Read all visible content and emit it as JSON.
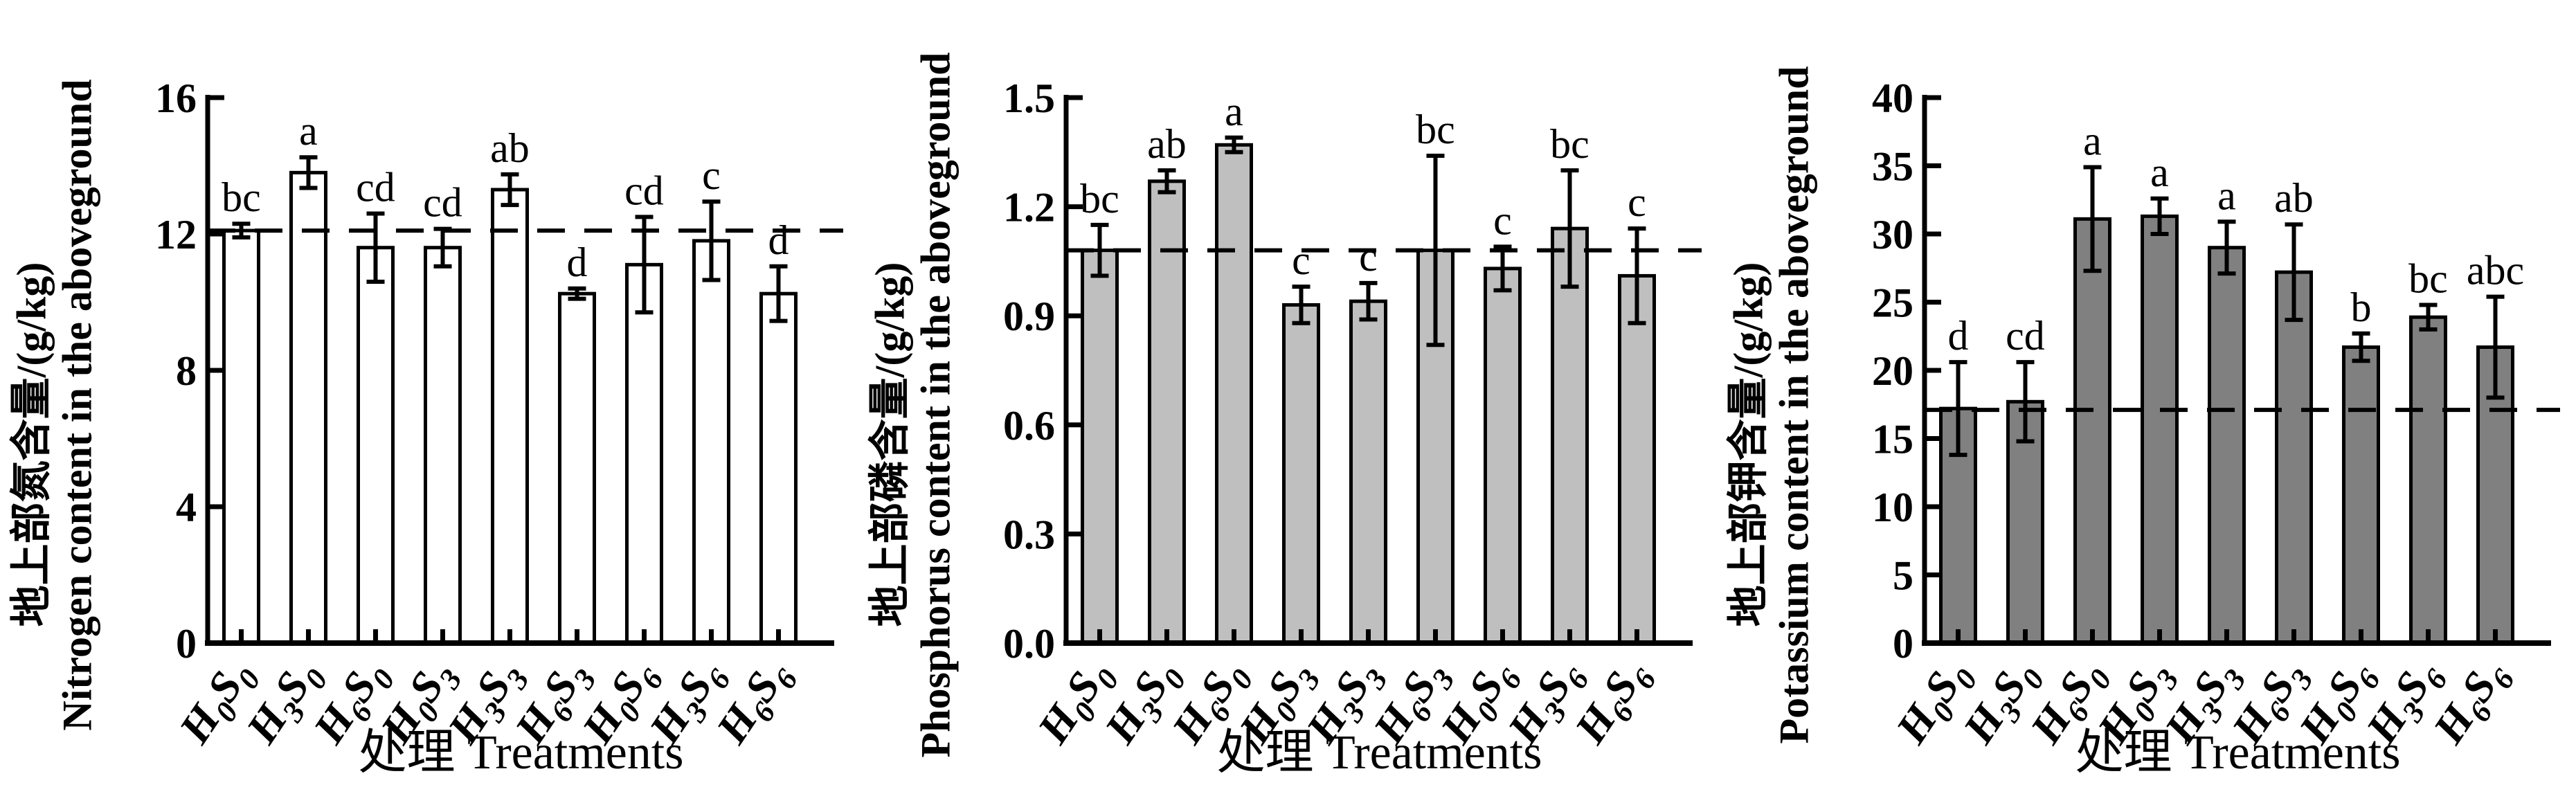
{
  "chart_data": [
    {
      "type": "bar",
      "ylabel_cn": "地上部氮含量/(g/kg)",
      "ylabel_en": "Nitrogen content in the aboveground",
      "xlabel": "处理 Treatments",
      "ylim": [
        0,
        16
      ],
      "ytick_labels": [
        "0",
        "4",
        "8",
        "12",
        "16"
      ],
      "categories": [
        "H₀S₀",
        "H₃S₀",
        "H₆S₀",
        "H₀S₃",
        "H₃S₃",
        "H₆S₃",
        "H₀S₆",
        "H₃S₆",
        "H₆S₆"
      ],
      "values": [
        12.1,
        13.8,
        11.6,
        11.6,
        13.3,
        10.25,
        11.1,
        11.8,
        10.25
      ],
      "errors": [
        0.2,
        0.45,
        1.0,
        0.55,
        0.45,
        0.15,
        1.4,
        1.15,
        0.8
      ],
      "sig_letters": [
        "bc",
        "a",
        "cd",
        "cd",
        "ab",
        "d",
        "cd",
        "c",
        "d"
      ],
      "reference_line": 12.1,
      "bar_fill": "#ffffff",
      "bar_stroke": "#000000",
      "grid": false,
      "legend": "none"
    },
    {
      "type": "bar",
      "ylabel_cn": "地上部磷含量/(g/kg)",
      "ylabel_en": "Phosphorus content in the aboveground",
      "xlabel": "处理 Treatments",
      "ylim": [
        0,
        1.5
      ],
      "ytick_labels": [
        "0.0",
        "0.3",
        "0.6",
        "0.9",
        "1.2",
        "1.5"
      ],
      "categories": [
        "H₀S₀",
        "H₃S₀",
        "H₆S₀",
        "H₀S₃",
        "H₃S₃",
        "H₆S₃",
        "H₀S₆",
        "H₃S₆",
        "H₆S₆"
      ],
      "values": [
        1.08,
        1.27,
        1.37,
        0.93,
        0.94,
        1.08,
        1.03,
        1.14,
        1.01
      ],
      "errors": [
        0.07,
        0.03,
        0.02,
        0.05,
        0.05,
        0.26,
        0.06,
        0.16,
        0.13
      ],
      "sig_letters": [
        "bc",
        "ab",
        "a",
        "c",
        "c",
        "bc",
        "c",
        "bc",
        "c"
      ],
      "reference_line": 1.08,
      "bar_fill": "#bfbfbf",
      "bar_stroke": "#000000",
      "grid": false,
      "legend": "none"
    },
    {
      "type": "bar",
      "ylabel_cn": "地上部钾含量/(g/kg)",
      "ylabel_en": "Potassium content in the aboveground",
      "xlabel": "处理 Treatments",
      "ylim": [
        0,
        40
      ],
      "ytick_labels": [
        "0",
        "5",
        "10",
        "15",
        "20",
        "25",
        "30",
        "35",
        "40"
      ],
      "categories": [
        "H₀S₀",
        "H₃S₀",
        "H₆S₀",
        "H₀S₃",
        "H₃S₃",
        "H₆S₃",
        "H₀S₆",
        "H₃S₆",
        "H₆S₆"
      ],
      "values": [
        17.2,
        17.7,
        31.1,
        31.3,
        29.0,
        27.2,
        21.7,
        23.9,
        21.7
      ],
      "errors": [
        3.4,
        2.9,
        3.8,
        1.3,
        1.9,
        3.5,
        1.0,
        0.9,
        3.7
      ],
      "sig_letters": [
        "d",
        "cd",
        "a",
        "a",
        "a",
        "ab",
        "b",
        "bc",
        "abc"
      ],
      "reference_line": 17.1,
      "bar_fill": "#808080",
      "bar_stroke": "#000000",
      "grid": false,
      "legend": "none"
    }
  ]
}
